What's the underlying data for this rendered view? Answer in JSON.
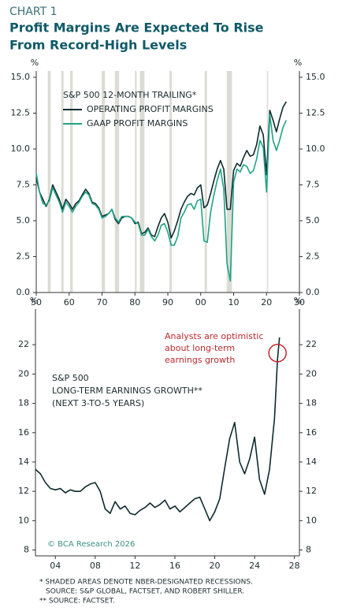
{
  "header": {
    "kicker": "CHART 1",
    "title": [
      "Profit Margins Are Expected To Rise",
      "From Record-High Levels"
    ]
  },
  "chart_data": [
    {
      "type": "line",
      "y_unit": "%",
      "legend_title": "S&P 500 12-MONTH TRAILING*",
      "xlim": [
        1950,
        2030
      ],
      "ylim": [
        0,
        15
      ],
      "xticks": [
        {
          "value": 1950,
          "label": "50"
        },
        {
          "value": 1960,
          "label": "60"
        },
        {
          "value": 1970,
          "label": "70"
        },
        {
          "value": 1980,
          "label": "80"
        },
        {
          "value": 1990,
          "label": "90"
        },
        {
          "value": 2000,
          "label": "00"
        },
        {
          "value": 2010,
          "label": "10"
        },
        {
          "value": 2020,
          "label": "20"
        },
        {
          "value": 2030,
          "label": "30"
        }
      ],
      "yticks": [
        {
          "value": 0,
          "label": "0.0"
        },
        {
          "value": 2.5,
          "label": "2.5"
        },
        {
          "value": 5,
          "label": "5.0"
        },
        {
          "value": 7.5,
          "label": "7.5"
        },
        {
          "value": 10,
          "label": "10.0"
        },
        {
          "value": 12.5,
          "label": "12.5"
        },
        {
          "value": 15,
          "label": "15.0"
        }
      ],
      "recessions": [
        [
          1953.5,
          1954.4
        ],
        [
          1957.6,
          1958.3
        ],
        [
          1960.3,
          1961.1
        ],
        [
          1969.9,
          1970.9
        ],
        [
          1973.9,
          1975.2
        ],
        [
          1980.0,
          1980.5
        ],
        [
          1981.5,
          1982.9
        ],
        [
          1990.5,
          1991.2
        ],
        [
          2001.2,
          2001.9
        ],
        [
          2007.9,
          2009.5
        ],
        [
          2020.1,
          2020.5
        ]
      ],
      "recession_color": "#dcdcd5",
      "x": [
        1950,
        1951,
        1952,
        1953,
        1954,
        1955,
        1956,
        1957,
        1958,
        1959,
        1960,
        1961,
        1962,
        1963,
        1964,
        1965,
        1966,
        1967,
        1968,
        1969,
        1970,
        1971,
        1972,
        1973,
        1974,
        1975,
        1976,
        1977,
        1978,
        1979,
        1980,
        1981,
        1982,
        1983,
        1984,
        1985,
        1986,
        1987,
        1988,
        1989,
        1990,
        1991,
        1992,
        1993,
        1994,
        1995,
        1996,
        1997,
        1998,
        1999,
        2000,
        2001,
        2002,
        2003,
        2004,
        2005,
        2006,
        2007,
        2008,
        2009,
        2010,
        2011,
        2012,
        2013,
        2014,
        2015,
        2016,
        2017,
        2018,
        2019,
        2020,
        2021,
        2022,
        2023,
        2024,
        2025,
        2026
      ],
      "series": [
        {
          "name": "OPERATING PROFIT MARGINS",
          "color": "#0e2a2e",
          "values": [
            8.0,
            7.0,
            6.5,
            6.0,
            6.5,
            7.5,
            7.0,
            6.5,
            5.8,
            6.5,
            6.2,
            5.8,
            6.2,
            6.4,
            6.8,
            7.2,
            6.9,
            6.3,
            6.2,
            5.9,
            5.3,
            5.4,
            5.5,
            5.8,
            5.1,
            4.8,
            5.2,
            5.3,
            5.3,
            5.2,
            4.8,
            4.9,
            4.1,
            4.2,
            4.5,
            4.0,
            3.9,
            4.6,
            5.2,
            5.5,
            4.9,
            3.8,
            4.3,
            5.0,
            5.8,
            6.3,
            6.7,
            6.9,
            6.8,
            7.3,
            7.5,
            5.9,
            6.1,
            6.9,
            7.8,
            8.6,
            9.2,
            8.6,
            5.8,
            5.8,
            8.5,
            9.0,
            8.8,
            9.4,
            9.9,
            9.5,
            9.6,
            10.3,
            11.6,
            11.0,
            8.2,
            12.7,
            12.0,
            11.2,
            12.1,
            12.9,
            13.3
          ]
        },
        {
          "name": "GAAP PROFIT MARGINS",
          "color": "#1ea384",
          "values": [
            8.3,
            7.0,
            6.2,
            6.1,
            6.4,
            7.3,
            6.8,
            6.3,
            5.6,
            6.3,
            6.0,
            5.6,
            6.0,
            6.3,
            6.7,
            7.0,
            6.8,
            6.2,
            6.1,
            5.8,
            5.2,
            5.3,
            5.5,
            5.8,
            5.2,
            4.9,
            5.3,
            5.3,
            5.3,
            5.2,
            4.9,
            4.8,
            4.0,
            4.0,
            4.4,
            3.9,
            3.6,
            4.0,
            4.7,
            4.8,
            4.2,
            3.3,
            3.3,
            3.9,
            5.2,
            5.6,
            6.1,
            6.2,
            5.8,
            6.4,
            6.5,
            3.6,
            3.5,
            5.6,
            6.8,
            7.8,
            8.6,
            7.2,
            2.0,
            0.8,
            7.7,
            8.6,
            8.4,
            8.9,
            8.8,
            8.3,
            8.5,
            9.3,
            10.6,
            10.1,
            7.0,
            12.4,
            10.6,
            9.9,
            10.6,
            11.5,
            12.0
          ]
        }
      ]
    },
    {
      "type": "line",
      "y_unit": "%",
      "legend_title": [
        "S&P 500",
        "LONG-TERM EARNINGS GROWTH**",
        "(NEXT 3-TO-5 YEARS)"
      ],
      "annotation": [
        "Analysts are optimistic",
        "about long-term",
        "earnings growth"
      ],
      "annotation_color": "#c0282d",
      "watermark": "© BCA Research 2026",
      "xlim": [
        2002,
        2028.5
      ],
      "ylim": [
        7.6,
        24
      ],
      "xticks": [
        {
          "value": 2004,
          "label": "04"
        },
        {
          "value": 2008,
          "label": "08"
        },
        {
          "value": 2012,
          "label": "12"
        },
        {
          "value": 2016,
          "label": "16"
        },
        {
          "value": 2020,
          "label": "20"
        },
        {
          "value": 2024,
          "label": "24"
        },
        {
          "value": 2028,
          "label": "28"
        }
      ],
      "yticks": [
        8,
        10,
        12,
        14,
        16,
        18,
        20,
        22
      ],
      "x": [
        2002,
        2002.5,
        2003,
        2003.5,
        2004,
        2004.5,
        2005,
        2005.5,
        2006,
        2006.5,
        2007,
        2007.5,
        2008,
        2008.5,
        2009,
        2009.5,
        2010,
        2010.5,
        2011,
        2011.5,
        2012,
        2012.5,
        2013,
        2013.5,
        2014,
        2014.5,
        2015,
        2015.5,
        2016,
        2016.5,
        2017,
        2017.5,
        2018,
        2018.5,
        2019,
        2019.5,
        2020,
        2020.5,
        2021,
        2021.5,
        2022,
        2022.5,
        2023,
        2023.5,
        2024,
        2024.5,
        2025,
        2025.5,
        2026,
        2026.3,
        2026.5
      ],
      "series": [
        {
          "name": "LONG-TERM EARNINGS GROWTH",
          "color": "#0e2a2e",
          "values": [
            13.5,
            13.2,
            12.6,
            12.2,
            12.1,
            12.2,
            11.9,
            12.1,
            12.0,
            12.0,
            12.3,
            12.5,
            12.6,
            12.0,
            10.8,
            10.5,
            11.3,
            10.8,
            11.0,
            10.5,
            10.4,
            10.7,
            10.9,
            11.2,
            10.9,
            11.1,
            11.4,
            10.8,
            11.0,
            10.6,
            10.9,
            11.2,
            11.5,
            11.6,
            10.8,
            10.0,
            10.6,
            11.5,
            13.6,
            15.6,
            16.7,
            14.0,
            13.2,
            14.2,
            15.7,
            12.8,
            11.8,
            13.5,
            17.0,
            21.0,
            22.5
          ]
        }
      ]
    }
  ],
  "footnotes": [
    "* SHADED AREAS DENOTE NBER-DESIGNATED RECESSIONS.",
    "SOURCE: S&P GLOBAL, FACTSET, AND ROBERT SHILLER.",
    "** SOURCE: FACTSET."
  ]
}
